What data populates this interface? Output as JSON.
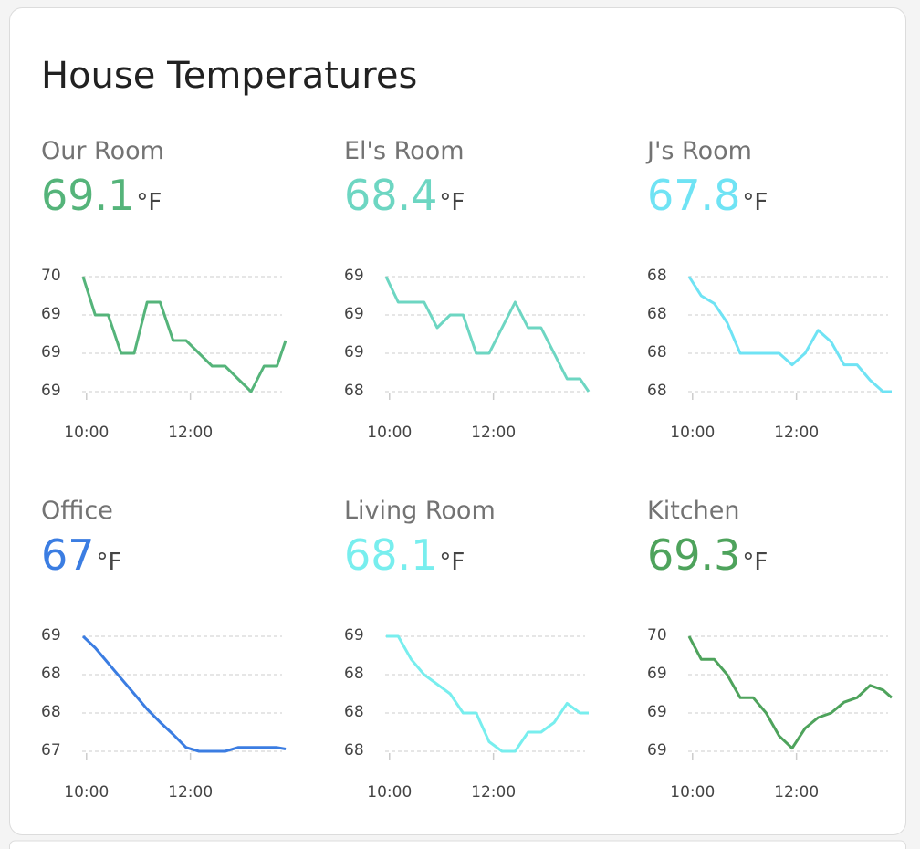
{
  "title": "House Temperatures",
  "chart_data": [
    {
      "type": "line",
      "name": "Our Room",
      "value": "69.1",
      "unit": "°F",
      "color": "#55b47a",
      "x": [
        "09:56",
        "10:10",
        "10:25",
        "10:40",
        "10:55",
        "11:10",
        "11:25",
        "11:40",
        "11:55",
        "12:10",
        "12:25",
        "12:40",
        "12:55",
        "13:10",
        "13:25",
        "13:40",
        "13:50"
      ],
      "values": [
        69.6,
        69.3,
        69.3,
        69.0,
        69.0,
        69.4,
        69.4,
        69.1,
        69.1,
        69.0,
        68.9,
        68.9,
        68.8,
        68.7,
        68.9,
        68.9,
        69.1
      ],
      "xlim": [
        "09:56",
        "13:50"
      ],
      "xticks": [
        "10:00",
        "12:00"
      ],
      "ylim": [
        68.7,
        69.6
      ],
      "yticks": [
        {
          "value": 69.6,
          "label": "70"
        },
        {
          "value": 69.3,
          "label": "69"
        },
        {
          "value": 69.0,
          "label": "69"
        },
        {
          "value": 68.7,
          "label": "69"
        }
      ]
    },
    {
      "type": "line",
      "name": "El's Room",
      "value": "68.4",
      "unit": "°F",
      "color": "#6dd6c2",
      "x": [
        "09:56",
        "10:10",
        "10:25",
        "10:40",
        "10:55",
        "11:10",
        "11:25",
        "11:40",
        "11:55",
        "12:10",
        "12:25",
        "12:40",
        "12:55",
        "13:10",
        "13:25",
        "13:40",
        "13:50"
      ],
      "values": [
        68.85,
        68.75,
        68.75,
        68.75,
        68.65,
        68.7,
        68.7,
        68.55,
        68.55,
        68.65,
        68.75,
        68.65,
        68.65,
        68.55,
        68.45,
        68.45,
        68.4
      ],
      "xlim": [
        "09:56",
        "13:50"
      ],
      "xticks": [
        "10:00",
        "12:00"
      ],
      "ylim": [
        68.4,
        68.85
      ],
      "yticks": [
        {
          "value": 68.85,
          "label": "69"
        },
        {
          "value": 68.7,
          "label": "69"
        },
        {
          "value": 68.55,
          "label": "69"
        },
        {
          "value": 68.4,
          "label": "68"
        }
      ]
    },
    {
      "type": "line",
      "name": "J's Room",
      "value": "67.8",
      "unit": "°F",
      "color": "#6fe3f4",
      "x": [
        "09:56",
        "10:10",
        "10:25",
        "10:40",
        "10:55",
        "11:10",
        "11:25",
        "11:40",
        "11:55",
        "12:10",
        "12:25",
        "12:40",
        "12:55",
        "13:10",
        "13:25",
        "13:40",
        "13:50"
      ],
      "values": [
        68.1,
        68.05,
        68.03,
        67.98,
        67.9,
        67.9,
        67.9,
        67.9,
        67.87,
        67.9,
        67.96,
        67.93,
        67.87,
        67.87,
        67.83,
        67.8,
        67.8
      ],
      "xlim": [
        "09:56",
        "13:50"
      ],
      "xticks": [
        "10:00",
        "12:00"
      ],
      "ylim": [
        67.8,
        68.1
      ],
      "yticks": [
        {
          "value": 68.1,
          "label": "68"
        },
        {
          "value": 68.0,
          "label": "68"
        },
        {
          "value": 67.9,
          "label": "68"
        },
        {
          "value": 67.8,
          "label": "68"
        }
      ]
    },
    {
      "type": "line",
      "name": "Office",
      "value": "67",
      "unit": "°F",
      "color": "#3b7de2",
      "x": [
        "09:56",
        "10:10",
        "10:25",
        "10:40",
        "10:55",
        "11:10",
        "11:25",
        "11:40",
        "11:55",
        "12:10",
        "12:25",
        "12:40",
        "12:55",
        "13:10",
        "13:25",
        "13:40",
        "13:50"
      ],
      "values": [
        68.5,
        68.35,
        68.15,
        67.95,
        67.75,
        67.55,
        67.38,
        67.22,
        67.05,
        67.0,
        67.0,
        67.0,
        67.05,
        67.05,
        67.05,
        67.05,
        67.03
      ],
      "xlim": [
        "09:56",
        "13:50"
      ],
      "xticks": [
        "10:00",
        "12:00"
      ],
      "ylim": [
        67.0,
        68.5
      ],
      "yticks": [
        {
          "value": 68.5,
          "label": "69"
        },
        {
          "value": 68.0,
          "label": "68"
        },
        {
          "value": 67.5,
          "label": "68"
        },
        {
          "value": 67.0,
          "label": "67"
        }
      ]
    },
    {
      "type": "line",
      "name": "Living Room",
      "value": "68.1",
      "unit": "°F",
      "color": "#78eeee",
      "x": [
        "09:56",
        "10:10",
        "10:25",
        "10:40",
        "10:55",
        "11:10",
        "11:25",
        "11:40",
        "11:55",
        "12:10",
        "12:25",
        "12:40",
        "12:55",
        "13:10",
        "13:25",
        "13:40",
        "13:50"
      ],
      "values": [
        68.5,
        68.5,
        68.38,
        68.3,
        68.25,
        68.2,
        68.1,
        68.1,
        67.95,
        67.9,
        67.9,
        68.0,
        68.0,
        68.05,
        68.15,
        68.1,
        68.1
      ],
      "xlim": [
        "09:56",
        "13:50"
      ],
      "xticks": [
        "10:00",
        "12:00"
      ],
      "ylim": [
        67.9,
        68.5
      ],
      "yticks": [
        {
          "value": 68.5,
          "label": "69"
        },
        {
          "value": 68.3,
          "label": "68"
        },
        {
          "value": 68.1,
          "label": "68"
        },
        {
          "value": 67.9,
          "label": "68"
        }
      ]
    },
    {
      "type": "line",
      "name": "Kitchen",
      "value": "69.3",
      "unit": "°F",
      "color": "#4ea35c",
      "x": [
        "09:56",
        "10:10",
        "10:25",
        "10:40",
        "10:55",
        "11:10",
        "11:25",
        "11:40",
        "11:55",
        "12:10",
        "12:25",
        "12:40",
        "12:55",
        "13:10",
        "13:25",
        "13:40",
        "13:50"
      ],
      "values": [
        69.7,
        69.55,
        69.55,
        69.45,
        69.3,
        69.3,
        69.2,
        69.05,
        68.97,
        69.1,
        69.17,
        69.2,
        69.27,
        69.3,
        69.38,
        69.35,
        69.3
      ],
      "xlim": [
        "09:56",
        "13:50"
      ],
      "xticks": [
        "10:00",
        "12:00"
      ],
      "ylim": [
        68.95,
        69.7
      ],
      "yticks": [
        {
          "value": 69.7,
          "label": "70"
        },
        {
          "value": 69.45,
          "label": "69"
        },
        {
          "value": 69.2,
          "label": "69"
        },
        {
          "value": 68.95,
          "label": "69"
        }
      ]
    }
  ]
}
